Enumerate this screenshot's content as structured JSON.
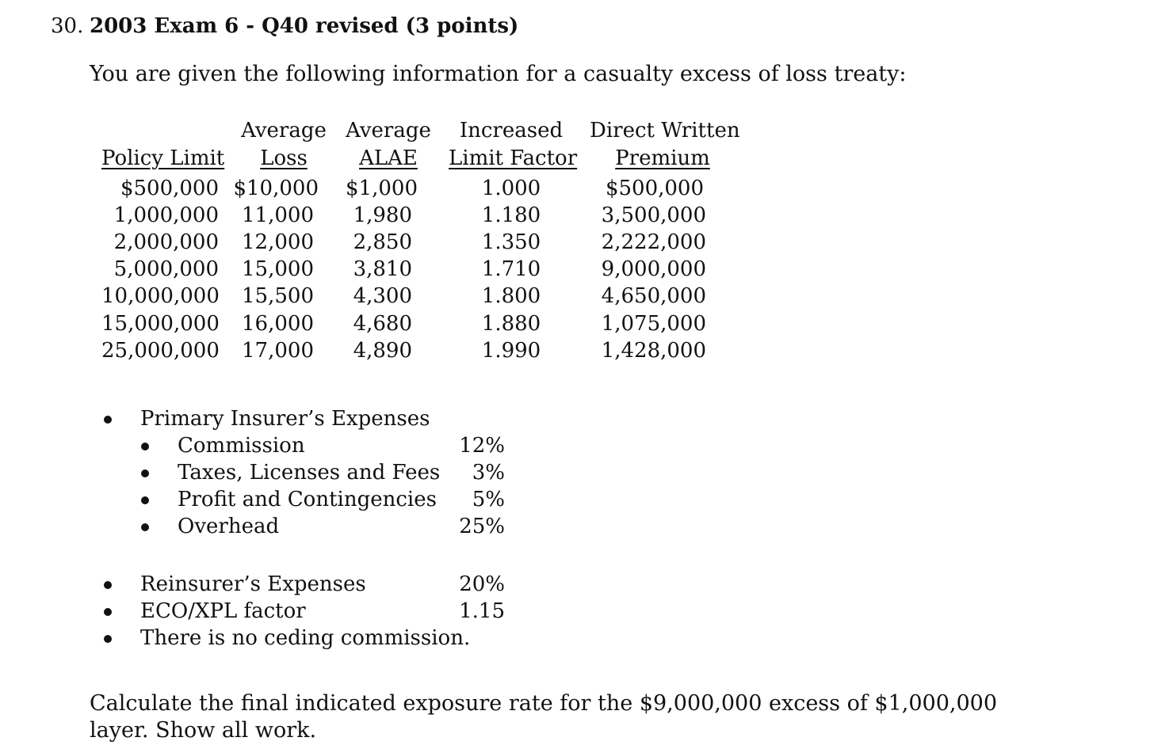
{
  "question": {
    "number": "30.",
    "title": "2003 Exam 6 - Q40 revised (3 points)",
    "intro": "You are given the following information for a casualty excess of loss treaty:",
    "prompt": "Calculate the final indicated exposure rate for the $9,000,000 excess of $1,000,000 layer. Show all work."
  },
  "table": {
    "headers": [
      {
        "line1": "",
        "line2": "Policy Limit"
      },
      {
        "line1": "Average",
        "line2": "Loss"
      },
      {
        "line1": "Average",
        "line2": "ALAE"
      },
      {
        "line1": "Increased",
        "line2": "Limit Factor"
      },
      {
        "line1": "Direct Written",
        "line2": "Premium"
      }
    ],
    "rows": [
      [
        "$500,000",
        "$10,000",
        "$1,000",
        "1.000",
        "$500,000"
      ],
      [
        "1,000,000",
        "11,000",
        "1,980",
        "1.180",
        "3,500,000"
      ],
      [
        "2,000,000",
        "12,000",
        "2,850",
        "1.350",
        "2,222,000"
      ],
      [
        "5,000,000",
        "15,000",
        "3,810",
        "1.710",
        "9,000,000"
      ],
      [
        "10,000,000",
        "15,500",
        "4,300",
        "1.800",
        "4,650,000"
      ],
      [
        "15,000,000",
        "16,000",
        "4,680",
        "1.880",
        "1,075,000"
      ],
      [
        "25,000,000",
        "17,000",
        "4,890",
        "1.990",
        "1,428,000"
      ]
    ]
  },
  "primary_expenses": {
    "heading": "Primary Insurer’s Expenses",
    "items": [
      {
        "label": "Commission",
        "value": "12%"
      },
      {
        "label": "Taxes, Licenses and Fees",
        "value": "3%"
      },
      {
        "label": "Profit and Contingencies",
        "value": "5%"
      },
      {
        "label": "Overhead",
        "value": "25%"
      }
    ]
  },
  "other_items": [
    {
      "label": "Reinsurer’s Expenses",
      "value": "20%"
    },
    {
      "label": "ECO/XPL factor",
      "value": "1.15"
    },
    {
      "label": "There is no ceding commission.",
      "value": ""
    }
  ]
}
